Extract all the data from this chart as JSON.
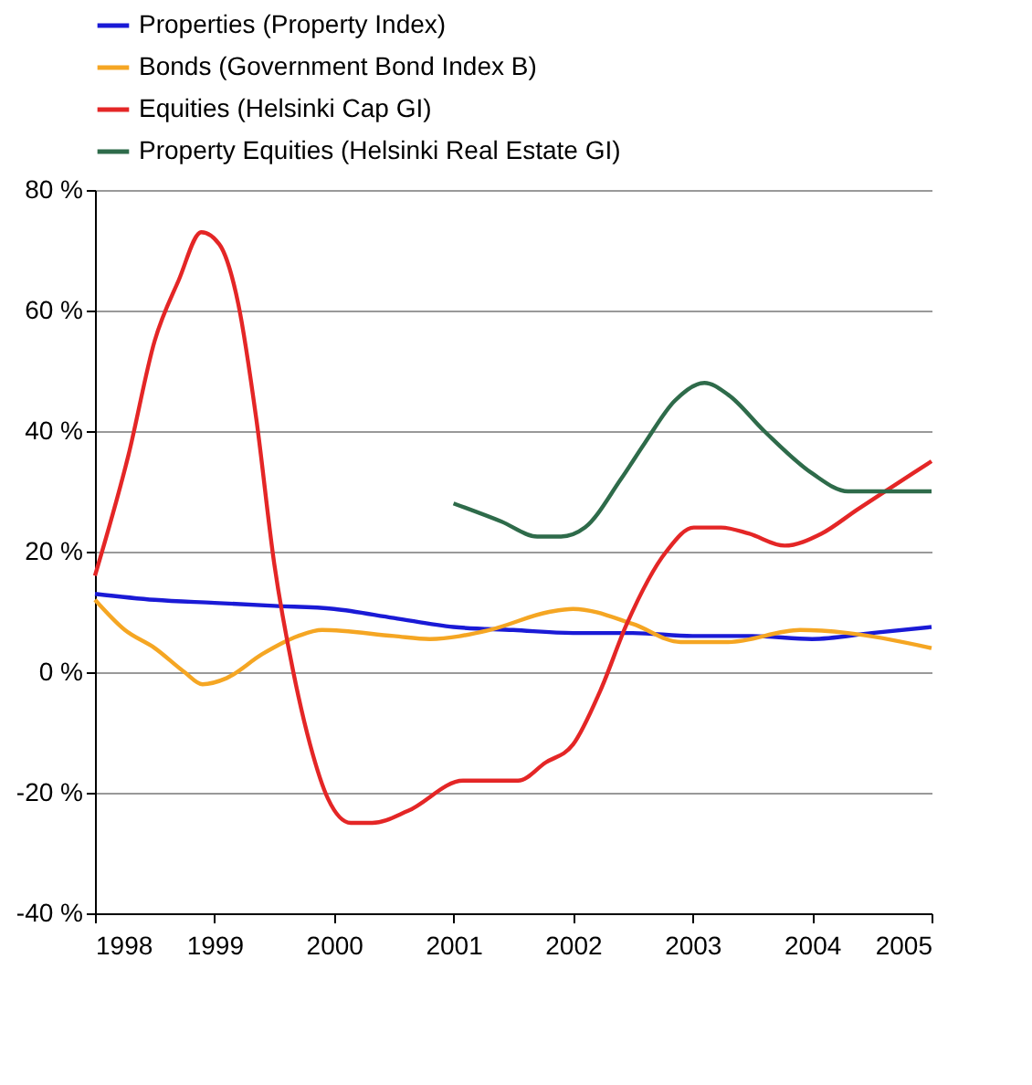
{
  "chart_data": {
    "type": "line",
    "xlim": [
      1998,
      2005
    ],
    "xticks": [
      1998,
      1999,
      2000,
      2001,
      2002,
      2003,
      2004,
      2005
    ],
    "ylim": [
      -40,
      80
    ],
    "yticks": [
      {
        "value": -40,
        "label": "-40 %"
      },
      {
        "value": -20,
        "label": "-20 %"
      },
      {
        "value": 0,
        "label": "0 %"
      },
      {
        "value": 20,
        "label": "20 %"
      },
      {
        "value": 40,
        "label": "40 %"
      },
      {
        "value": 60,
        "label": "60 %"
      },
      {
        "value": 80,
        "label": "80 %"
      }
    ],
    "grid": "y",
    "legend": "top",
    "line_style": "solid",
    "marker": "none",
    "series": [
      {
        "name": "Properties (Property Index)",
        "color": "#1a1ad6",
        "x": [
          1998,
          1998.5,
          1999,
          1999.5,
          2000,
          2000.5,
          2001,
          2001.5,
          2002,
          2002.5,
          2003,
          2003.5,
          2004,
          2004.5,
          2005
        ],
        "values": [
          13,
          12,
          11.5,
          11,
          10.5,
          9,
          7.5,
          7,
          6.5,
          6.5,
          6,
          6,
          5.5,
          6.5,
          7.5
        ]
      },
      {
        "name": "Bonds (Government Bond Index B)",
        "color": "#f5a623",
        "x": [
          1998,
          1998.25,
          1998.5,
          1998.75,
          1998.9,
          1999.1,
          1999.4,
          1999.7,
          1999.9,
          2000.5,
          2000.8,
          2001.3,
          2001.8,
          2002,
          2002.5,
          2002.9,
          2003.3,
          2003.9,
          2004.3,
          2005
        ],
        "values": [
          12,
          7,
          4,
          0,
          -2,
          -1,
          3,
          6,
          7,
          6,
          5.5,
          7,
          10,
          10.5,
          8,
          5,
          5,
          7,
          6.5,
          4
        ]
      },
      {
        "name": "Equities (Helsinki Cap GI)",
        "color": "#e42626",
        "x": [
          1998,
          1998.28,
          1998.5,
          1998.7,
          1998.89,
          1999.04,
          1999.2,
          1999.35,
          1999.5,
          1999.66,
          1999.8,
          1999.95,
          2000.14,
          2000.32,
          2000.62,
          2001.08,
          2001.54,
          2001.77,
          2002,
          2002.23,
          2002.45,
          2002.78,
          2003.01,
          2003.24,
          2003.47,
          2003.77,
          2004.08,
          2004.38,
          2004.69,
          2005
        ],
        "values": [
          16,
          36,
          55,
          65,
          73,
          71,
          61,
          42,
          18,
          0,
          -12,
          -21,
          -25,
          -25,
          -23,
          -18,
          -18,
          -15,
          -12,
          -3,
          8,
          20,
          24,
          24,
          23,
          21,
          23,
          27,
          31,
          35
        ]
      },
      {
        "name": "Property Equities (Helsinki Real Estate GI)",
        "color": "#2e6b4a",
        "x": [
          2001,
          2001.4,
          2001.7,
          2001.9,
          2002.1,
          2002.4,
          2002.6,
          2002.85,
          2003.1,
          2003.3,
          2003.6,
          2004,
          2004.3,
          2004.8,
          2005
        ],
        "values": [
          28,
          25,
          22.5,
          22.5,
          24,
          32,
          38,
          45,
          48,
          46,
          40,
          33,
          30,
          30,
          30
        ]
      }
    ]
  }
}
